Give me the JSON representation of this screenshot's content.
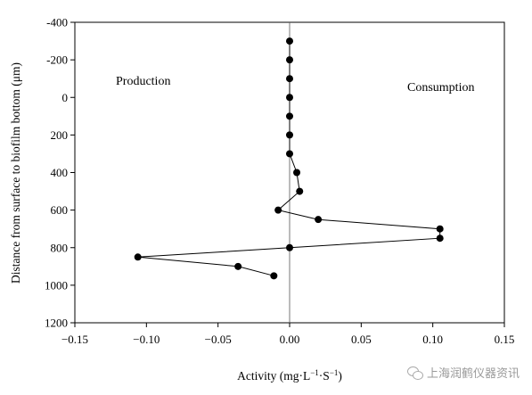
{
  "chart_data": {
    "type": "line",
    "xlabel": "Activity (mg·L",
    "xlabel_sup1": "−1",
    "xlabel_mid": "·S",
    "xlabel_sup2": "−1",
    "xlabel_end": ")",
    "ylabel": "Distance from surface to biofilm bottom (μm)",
    "xlim": [
      -0.15,
      0.15
    ],
    "ylim": [
      -400,
      1200
    ],
    "y_inverted": true,
    "x_ticks": [
      "−0.15",
      "−0.10",
      "−0.05",
      "0.00",
      "0.05",
      "0.10",
      "0.15"
    ],
    "y_ticks": [
      "-400",
      "-200",
      "0",
      "200",
      "400",
      "600",
      "800",
      "1000",
      "1200"
    ],
    "annotations": {
      "left": "Production",
      "right": "Consumption"
    },
    "series": [
      {
        "points": [
          {
            "x": 0.0,
            "y": -300
          },
          {
            "x": 0.0,
            "y": -200
          },
          {
            "x": 0.0,
            "y": -100
          },
          {
            "x": 0.0,
            "y": 0
          },
          {
            "x": 0.0,
            "y": 100
          },
          {
            "x": 0.0,
            "y": 200
          },
          {
            "x": 0.0,
            "y": 300
          },
          {
            "x": 0.005,
            "y": 400
          },
          {
            "x": 0.007,
            "y": 500
          },
          {
            "x": -0.008,
            "y": 600
          },
          {
            "x": 0.02,
            "y": 650
          },
          {
            "x": 0.105,
            "y": 700
          },
          {
            "x": 0.105,
            "y": 750
          },
          {
            "x": 0.0,
            "y": 800
          },
          {
            "x": -0.106,
            "y": 850
          },
          {
            "x": -0.036,
            "y": 900
          },
          {
            "x": -0.011,
            "y": 950
          }
        ]
      }
    ],
    "colors": {
      "line": "#000000",
      "marker": "#000000"
    }
  },
  "watermark": {
    "text": "上海润鹤仪器资讯"
  }
}
